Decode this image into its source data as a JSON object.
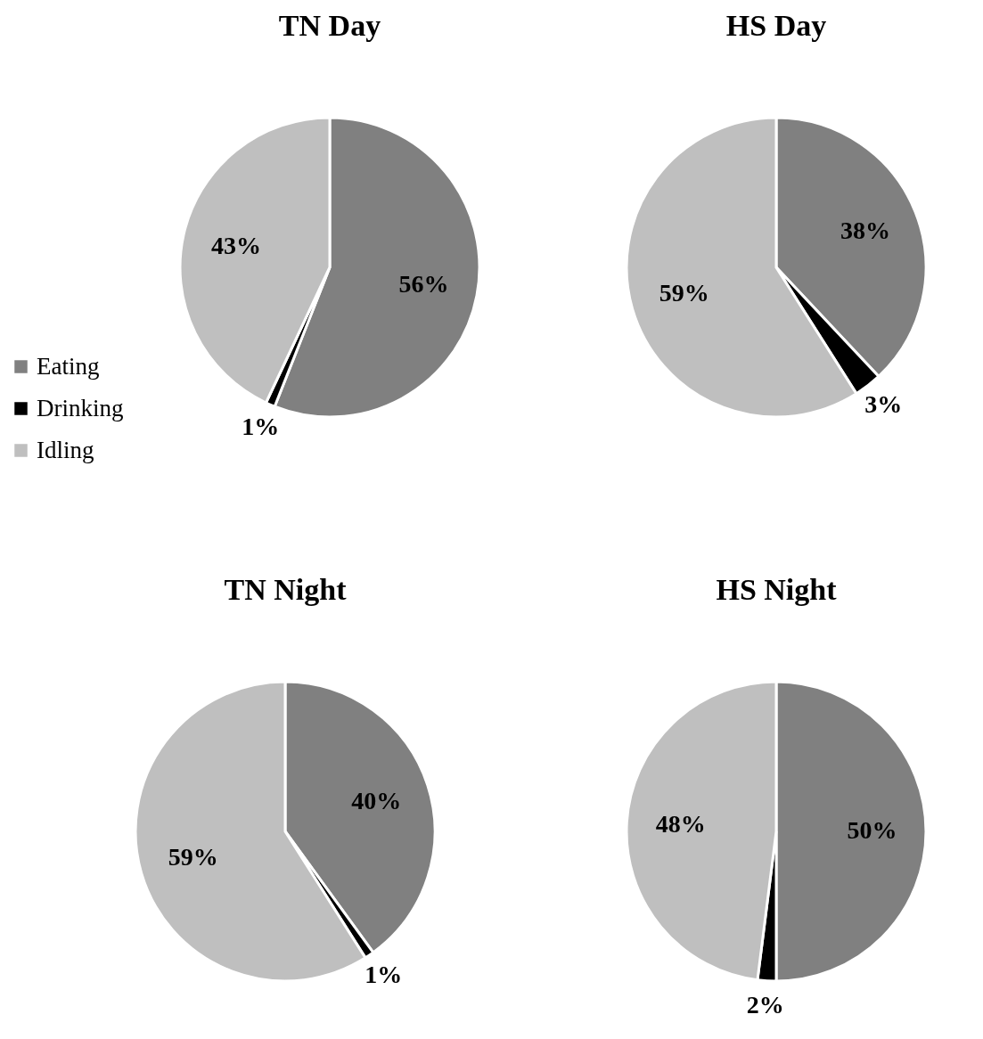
{
  "chart_data": [
    {
      "type": "pie",
      "title": "TN Day",
      "categories": [
        "Eating",
        "Drinking",
        "Idling"
      ],
      "values": [
        56,
        1,
        43
      ],
      "colors": [
        "#808080",
        "#000000",
        "#bfbfbf"
      ],
      "value_labels": [
        "56%",
        "1%",
        "43%"
      ],
      "legend": "left"
    },
    {
      "type": "pie",
      "title": "HS Day",
      "categories": [
        null,
        null,
        null
      ],
      "values": [
        38,
        3,
        59
      ],
      "colors": [
        "#808080",
        "#000000",
        "#bfbfbf"
      ],
      "value_labels": [
        "38%",
        "3%",
        "59%"
      ],
      "legend": false
    },
    {
      "type": "pie",
      "title": "TN Night",
      "categories": [
        null,
        null,
        null
      ],
      "values": [
        40,
        1,
        59
      ],
      "colors": [
        "#808080",
        "#000000",
        "#bfbfbf"
      ],
      "value_labels": [
        "40%",
        "1%",
        "59%"
      ],
      "legend": false
    },
    {
      "type": "pie",
      "title": "HS Night",
      "categories": [
        null,
        null,
        null
      ],
      "values": [
        50,
        2,
        48
      ],
      "colors": [
        "#808080",
        "#000000",
        "#bfbfbf"
      ],
      "value_labels": [
        "50%",
        "2%",
        "48%"
      ],
      "legend": false
    }
  ]
}
